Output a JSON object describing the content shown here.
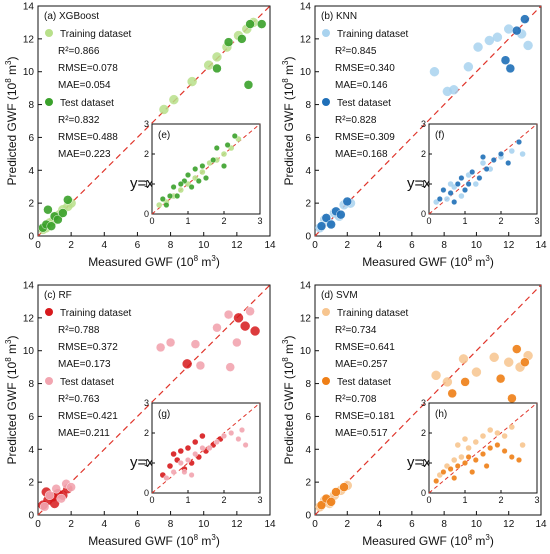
{
  "chart_data": [
    {
      "panel": "(a) XGBoost",
      "type": "scatter",
      "xlabel": "Measured GWF (10",
      "xlabel_sup": "8",
      "xlabel_tail": " m",
      "xlabel_sup2": "3",
      "ylabel": "Predicted GWF (10",
      "ylabel_sup": "8",
      "ylabel_tail": " m",
      "ylabel_sup2": "3",
      "xlim": [
        0,
        14
      ],
      "ylim": [
        0,
        14
      ],
      "xticks": [
        "0",
        "2",
        "4",
        "6",
        "8",
        "10",
        "12",
        "14"
      ],
      "yticks": [
        "0",
        "2",
        "4",
        "6",
        "8",
        "10",
        "12",
        "14"
      ],
      "legend_position": "top-left",
      "identity_label": "y=x",
      "train_color": "#b8e08a",
      "test_color": "#3aa12b",
      "training": {
        "name": "Training dataset",
        "r2": "R²=0.866",
        "rmse": "RMSE=0.078",
        "mae": "MAE=0.054"
      },
      "test": {
        "name": "Test dataset",
        "r2": "R²=0.832",
        "rmse": "RMSE=0.488",
        "mae": "MAE=0.223"
      },
      "training_points": [
        [
          0.3,
          0.4
        ],
        [
          0.5,
          0.5
        ],
        [
          0.7,
          0.8
        ],
        [
          0.9,
          0.9
        ],
        [
          1.1,
          1.2
        ],
        [
          1.3,
          1.3
        ],
        [
          1.5,
          1.6
        ],
        [
          1.8,
          1.8
        ],
        [
          2.0,
          2.0
        ],
        [
          7.6,
          7.7
        ],
        [
          8.2,
          8.3
        ],
        [
          9.3,
          9.4
        ],
        [
          10.3,
          10.4
        ],
        [
          10.8,
          10.9
        ],
        [
          11.4,
          11.5
        ],
        [
          12.1,
          12.2
        ],
        [
          12.6,
          12.6
        ],
        [
          13.0,
          13.0
        ]
      ],
      "test_points": [
        [
          0.3,
          0.5
        ],
        [
          0.5,
          0.7
        ],
        [
          0.8,
          0.6
        ],
        [
          1.0,
          1.2
        ],
        [
          1.2,
          1.0
        ],
        [
          1.5,
          1.4
        ],
        [
          1.8,
          2.2
        ],
        [
          0.6,
          1.6
        ],
        [
          12.7,
          9.2
        ],
        [
          12.3,
          12.0
        ],
        [
          11.5,
          11.8
        ],
        [
          13.5,
          12.9
        ],
        [
          12.8,
          12.9
        ],
        [
          10.8,
          10.2
        ]
      ],
      "inset": {
        "label": "(e)",
        "xlim": [
          0,
          3
        ],
        "ylim": [
          0,
          3
        ],
        "xticks": [
          "0",
          "1",
          "2",
          "3"
        ],
        "yticks": [
          "0",
          "1",
          "2",
          "3"
        ],
        "training_points": [
          [
            0.2,
            0.3
          ],
          [
            0.4,
            0.4
          ],
          [
            0.6,
            0.6
          ],
          [
            0.8,
            0.8
          ],
          [
            1.0,
            1.0
          ],
          [
            1.2,
            1.2
          ],
          [
            1.4,
            1.4
          ],
          [
            1.6,
            1.7
          ],
          [
            1.8,
            1.8
          ],
          [
            2.0,
            2.0
          ],
          [
            2.2,
            2.2
          ],
          [
            2.4,
            2.5
          ]
        ],
        "test_points": [
          [
            0.3,
            0.5
          ],
          [
            0.5,
            0.6
          ],
          [
            0.6,
            0.9
          ],
          [
            0.7,
            0.6
          ],
          [
            0.9,
            1.1
          ],
          [
            1.0,
            1.3
          ],
          [
            1.1,
            0.9
          ],
          [
            1.2,
            1.5
          ],
          [
            1.4,
            1.6
          ],
          [
            1.5,
            1.2
          ],
          [
            1.7,
            1.8
          ],
          [
            1.8,
            2.2
          ],
          [
            2.0,
            1.6
          ],
          [
            2.1,
            2.3
          ],
          [
            2.3,
            2.6
          ],
          [
            0.4,
            0.3
          ],
          [
            0.8,
            1.0
          ],
          [
            1.3,
            1.1
          ]
        ]
      }
    },
    {
      "panel": "(b) KNN",
      "type": "scatter",
      "xlabel": "Measured GWF (10",
      "xlabel_sup": "8",
      "xlabel_tail": " m",
      "xlabel_sup2": "3",
      "ylabel": "Predicted GWF (10",
      "ylabel_sup": "8",
      "ylabel_tail": " m",
      "ylabel_sup2": "3",
      "xlim": [
        0,
        14
      ],
      "ylim": [
        0,
        14
      ],
      "xticks": [
        "0",
        "2",
        "4",
        "6",
        "8",
        "10",
        "12",
        "14"
      ],
      "yticks": [
        "0",
        "2",
        "4",
        "6",
        "8",
        "10",
        "12",
        "14"
      ],
      "legend_position": "top-left",
      "identity_label": "y=x",
      "train_color": "#a9d3ef",
      "test_color": "#1f6fb8",
      "training": {
        "name": "Training dataset",
        "r2": "R²=0.845",
        "rmse": "RMSE=0.340",
        "mae": "MAE=0.146"
      },
      "test": {
        "name": "Test dataset",
        "r2": "R²=0.828",
        "rmse": "RMSE=0.309",
        "mae": "MAE=0.168"
      },
      "training_points": [
        [
          0.3,
          0.5
        ],
        [
          0.6,
          1.0
        ],
        [
          0.9,
          0.8
        ],
        [
          1.2,
          1.4
        ],
        [
          1.5,
          1.2
        ],
        [
          1.8,
          1.9
        ],
        [
          2.2,
          2.0
        ],
        [
          7.4,
          10.0
        ],
        [
          8.2,
          8.8
        ],
        [
          8.6,
          8.9
        ],
        [
          9.5,
          10.3
        ],
        [
          10.1,
          11.5
        ],
        [
          10.8,
          11.9
        ],
        [
          11.3,
          12.1
        ],
        [
          12.0,
          12.6
        ],
        [
          12.8,
          12.3
        ],
        [
          13.2,
          11.6
        ]
      ],
      "test_points": [
        [
          0.4,
          0.6
        ],
        [
          0.7,
          1.1
        ],
        [
          1.0,
          0.7
        ],
        [
          1.3,
          1.5
        ],
        [
          1.6,
          1.3
        ],
        [
          2.0,
          2.1
        ],
        [
          11.8,
          10.7
        ],
        [
          12.5,
          12.5
        ],
        [
          13.0,
          13.2
        ],
        [
          12.1,
          10.2
        ]
      ],
      "inset": {
        "label": "(f)",
        "xlim": [
          0,
          3
        ],
        "ylim": [
          0,
          3
        ],
        "xticks": [
          "0",
          "1",
          "2",
          "3"
        ],
        "yticks": [
          "0",
          "1",
          "2",
          "3"
        ],
        "training_points": [
          [
            0.2,
            0.4
          ],
          [
            0.5,
            0.5
          ],
          [
            0.7,
            0.9
          ],
          [
            0.9,
            0.6
          ],
          [
            1.1,
            1.3
          ],
          [
            1.3,
            1.0
          ],
          [
            1.5,
            1.7
          ],
          [
            1.7,
            1.5
          ],
          [
            2.0,
            1.9
          ],
          [
            2.3,
            2.1
          ],
          [
            2.6,
            2.0
          ],
          [
            0.6,
            1.0
          ]
        ],
        "test_points": [
          [
            0.3,
            0.5
          ],
          [
            0.4,
            0.8
          ],
          [
            0.6,
            0.7
          ],
          [
            0.8,
            1.0
          ],
          [
            0.9,
            1.2
          ],
          [
            1.0,
            0.8
          ],
          [
            1.2,
            1.4
          ],
          [
            1.4,
            1.2
          ],
          [
            1.6,
            1.5
          ],
          [
            1.8,
            1.8
          ],
          [
            2.0,
            2.0
          ],
          [
            2.2,
            1.7
          ],
          [
            2.5,
            2.4
          ],
          [
            0.7,
            0.4
          ],
          [
            1.1,
            1.0
          ],
          [
            1.5,
            1.9
          ]
        ]
      }
    },
    {
      "panel": "(c) RF",
      "type": "scatter",
      "xlabel": "Measured GWF (10",
      "xlabel_sup": "8",
      "xlabel_tail": " m",
      "xlabel_sup2": "3",
      "ylabel": "Predicted GWF (10",
      "ylabel_sup": "8",
      "ylabel_tail": " m",
      "ylabel_sup2": "3",
      "xlim": [
        0,
        14
      ],
      "ylim": [
        0,
        14
      ],
      "xticks": [
        "0",
        "2",
        "4",
        "6",
        "8",
        "10",
        "12",
        "14"
      ],
      "yticks": [
        "0",
        "2",
        "4",
        "6",
        "8",
        "10",
        "12",
        "14"
      ],
      "legend_position": "top-left",
      "identity_label": "y=x",
      "train_color": "#d7191c",
      "test_color": "#f2a5b0",
      "training": {
        "name": "Training dataset",
        "r2": "R²=0.788",
        "rmse": "RMSE=0.372",
        "mae": "MAE=0.173"
      },
      "test": {
        "name": "Test dataset",
        "r2": "R²=0.763",
        "rmse": "RMSE=0.421",
        "mae": "MAE=0.211"
      },
      "training_points": [
        [
          0.3,
          0.6
        ],
        [
          0.6,
          0.9
        ],
        [
          0.9,
          1.1
        ],
        [
          1.2,
          1.3
        ],
        [
          1.5,
          1.2
        ],
        [
          1.8,
          1.6
        ],
        [
          0.5,
          1.4
        ],
        [
          1.0,
          0.7
        ],
        [
          9.0,
          9.2
        ],
        [
          12.1,
          12.0
        ],
        [
          12.5,
          11.5
        ],
        [
          13.1,
          11.2
        ]
      ],
      "test_points": [
        [
          0.4,
          0.5
        ],
        [
          0.7,
          1.2
        ],
        [
          1.1,
          1.6
        ],
        [
          1.4,
          1.0
        ],
        [
          1.7,
          1.9
        ],
        [
          2.0,
          1.7
        ],
        [
          7.4,
          10.2
        ],
        [
          8.0,
          10.5
        ],
        [
          9.5,
          10.4
        ],
        [
          10.8,
          11.4
        ],
        [
          11.5,
          12.2
        ],
        [
          12.0,
          10.5
        ],
        [
          12.8,
          12.4
        ],
        [
          11.6,
          9.0
        ],
        [
          9.8,
          9.1
        ]
      ],
      "inset": {
        "label": "(g)",
        "xlim": [
          0,
          3
        ],
        "ylim": [
          0,
          3
        ],
        "xticks": [
          "0",
          "1",
          "2",
          "3"
        ],
        "yticks": [
          "0",
          "1",
          "2",
          "3"
        ],
        "training_points": [
          [
            0.3,
            0.6
          ],
          [
            0.5,
            0.9
          ],
          [
            0.7,
            1.1
          ],
          [
            0.8,
            1.4
          ],
          [
            0.9,
            0.8
          ],
          [
            1.0,
            1.5
          ],
          [
            1.1,
            1.0
          ],
          [
            1.2,
            1.7
          ],
          [
            1.3,
            1.2
          ],
          [
            1.5,
            1.4
          ],
          [
            1.7,
            1.6
          ],
          [
            1.9,
            1.8
          ],
          [
            0.6,
            1.3
          ],
          [
            1.4,
            1.9
          ]
        ],
        "test_points": [
          [
            0.4,
            0.5
          ],
          [
            0.6,
            0.7
          ],
          [
            0.8,
            1.0
          ],
          [
            1.0,
            1.1
          ],
          [
            1.2,
            1.3
          ],
          [
            1.4,
            1.5
          ],
          [
            1.6,
            1.5
          ],
          [
            1.8,
            1.7
          ],
          [
            2.0,
            1.9
          ],
          [
            2.2,
            2.0
          ],
          [
            2.4,
            1.8
          ],
          [
            2.6,
            1.6
          ],
          [
            2.5,
            2.1
          ],
          [
            1.1,
            0.6
          ],
          [
            0.9,
            0.7
          ]
        ]
      }
    },
    {
      "panel": "(d) SVM",
      "type": "scatter",
      "xlabel": "Measured GWF (10",
      "xlabel_sup": "8",
      "xlabel_tail": " m",
      "xlabel_sup2": "3",
      "ylabel": "Predicted GWF (10",
      "ylabel_sup": "8",
      "ylabel_tail": " m",
      "ylabel_sup2": "3",
      "xlim": [
        0,
        14
      ],
      "ylim": [
        0,
        14
      ],
      "xticks": [
        "0",
        "2",
        "4",
        "6",
        "8",
        "10",
        "12",
        "14"
      ],
      "yticks": [
        "0",
        "2",
        "4",
        "6",
        "8",
        "10",
        "12",
        "14"
      ],
      "legend_position": "top-left",
      "identity_label": "y=x",
      "train_color": "#f7c58f",
      "test_color": "#ef7f16",
      "training": {
        "name": "Training dataset",
        "r2": "R²=0.734",
        "rmse": "RMSE=0.641",
        "mae": "MAE=0.257"
      },
      "test": {
        "name": "Test dataset",
        "r2": "R²=0.708",
        "rmse": "RMSE=0.181",
        "mae": "MAE=0.517"
      },
      "training_points": [
        [
          0.3,
          0.5
        ],
        [
          0.6,
          0.9
        ],
        [
          0.9,
          0.7
        ],
        [
          1.2,
          1.2
        ],
        [
          1.6,
          1.5
        ],
        [
          2.0,
          1.8
        ],
        [
          7.5,
          8.5
        ],
        [
          8.2,
          8.1
        ],
        [
          9.2,
          9.5
        ],
        [
          10.0,
          8.7
        ],
        [
          11.1,
          9.6
        ],
        [
          12.0,
          9.3
        ],
        [
          12.7,
          9.0
        ],
        [
          13.2,
          9.7
        ]
      ],
      "test_points": [
        [
          0.4,
          0.6
        ],
        [
          0.7,
          1.0
        ],
        [
          1.0,
          0.8
        ],
        [
          1.3,
          1.4
        ],
        [
          1.8,
          1.7
        ],
        [
          8.5,
          7.4
        ],
        [
          9.3,
          8.1
        ],
        [
          11.5,
          8.3
        ],
        [
          12.2,
          7.1
        ],
        [
          12.5,
          10.1
        ],
        [
          13.0,
          9.3
        ]
      ],
      "inset": {
        "label": "(h)",
        "xlim": [
          0,
          3
        ],
        "ylim": [
          0,
          3
        ],
        "xticks": [
          "0",
          "1",
          "2",
          "3"
        ],
        "yticks": [
          "0",
          "1",
          "2",
          "3"
        ],
        "training_points": [
          [
            0.3,
            0.6
          ],
          [
            0.5,
            0.9
          ],
          [
            0.7,
            1.1
          ],
          [
            0.9,
            1.2
          ],
          [
            1.1,
            1.5
          ],
          [
            1.3,
            1.7
          ],
          [
            1.5,
            1.9
          ],
          [
            1.7,
            2.1
          ],
          [
            1.9,
            2.0
          ],
          [
            2.1,
            1.9
          ],
          [
            2.3,
            2.2
          ],
          [
            2.6,
            1.6
          ],
          [
            1.0,
            1.8
          ],
          [
            0.8,
            1.6
          ]
        ],
        "test_points": [
          [
            0.2,
            0.4
          ],
          [
            0.4,
            0.7
          ],
          [
            0.6,
            0.8
          ],
          [
            0.8,
            0.9
          ],
          [
            1.0,
            1.0
          ],
          [
            1.1,
            1.2
          ],
          [
            1.3,
            1.1
          ],
          [
            1.5,
            1.3
          ],
          [
            1.7,
            1.5
          ],
          [
            1.9,
            1.6
          ],
          [
            2.1,
            1.4
          ],
          [
            2.3,
            1.2
          ],
          [
            2.5,
            1.1
          ],
          [
            0.7,
            0.5
          ],
          [
            1.2,
            0.7
          ],
          [
            1.6,
            0.9
          ]
        ]
      }
    }
  ]
}
